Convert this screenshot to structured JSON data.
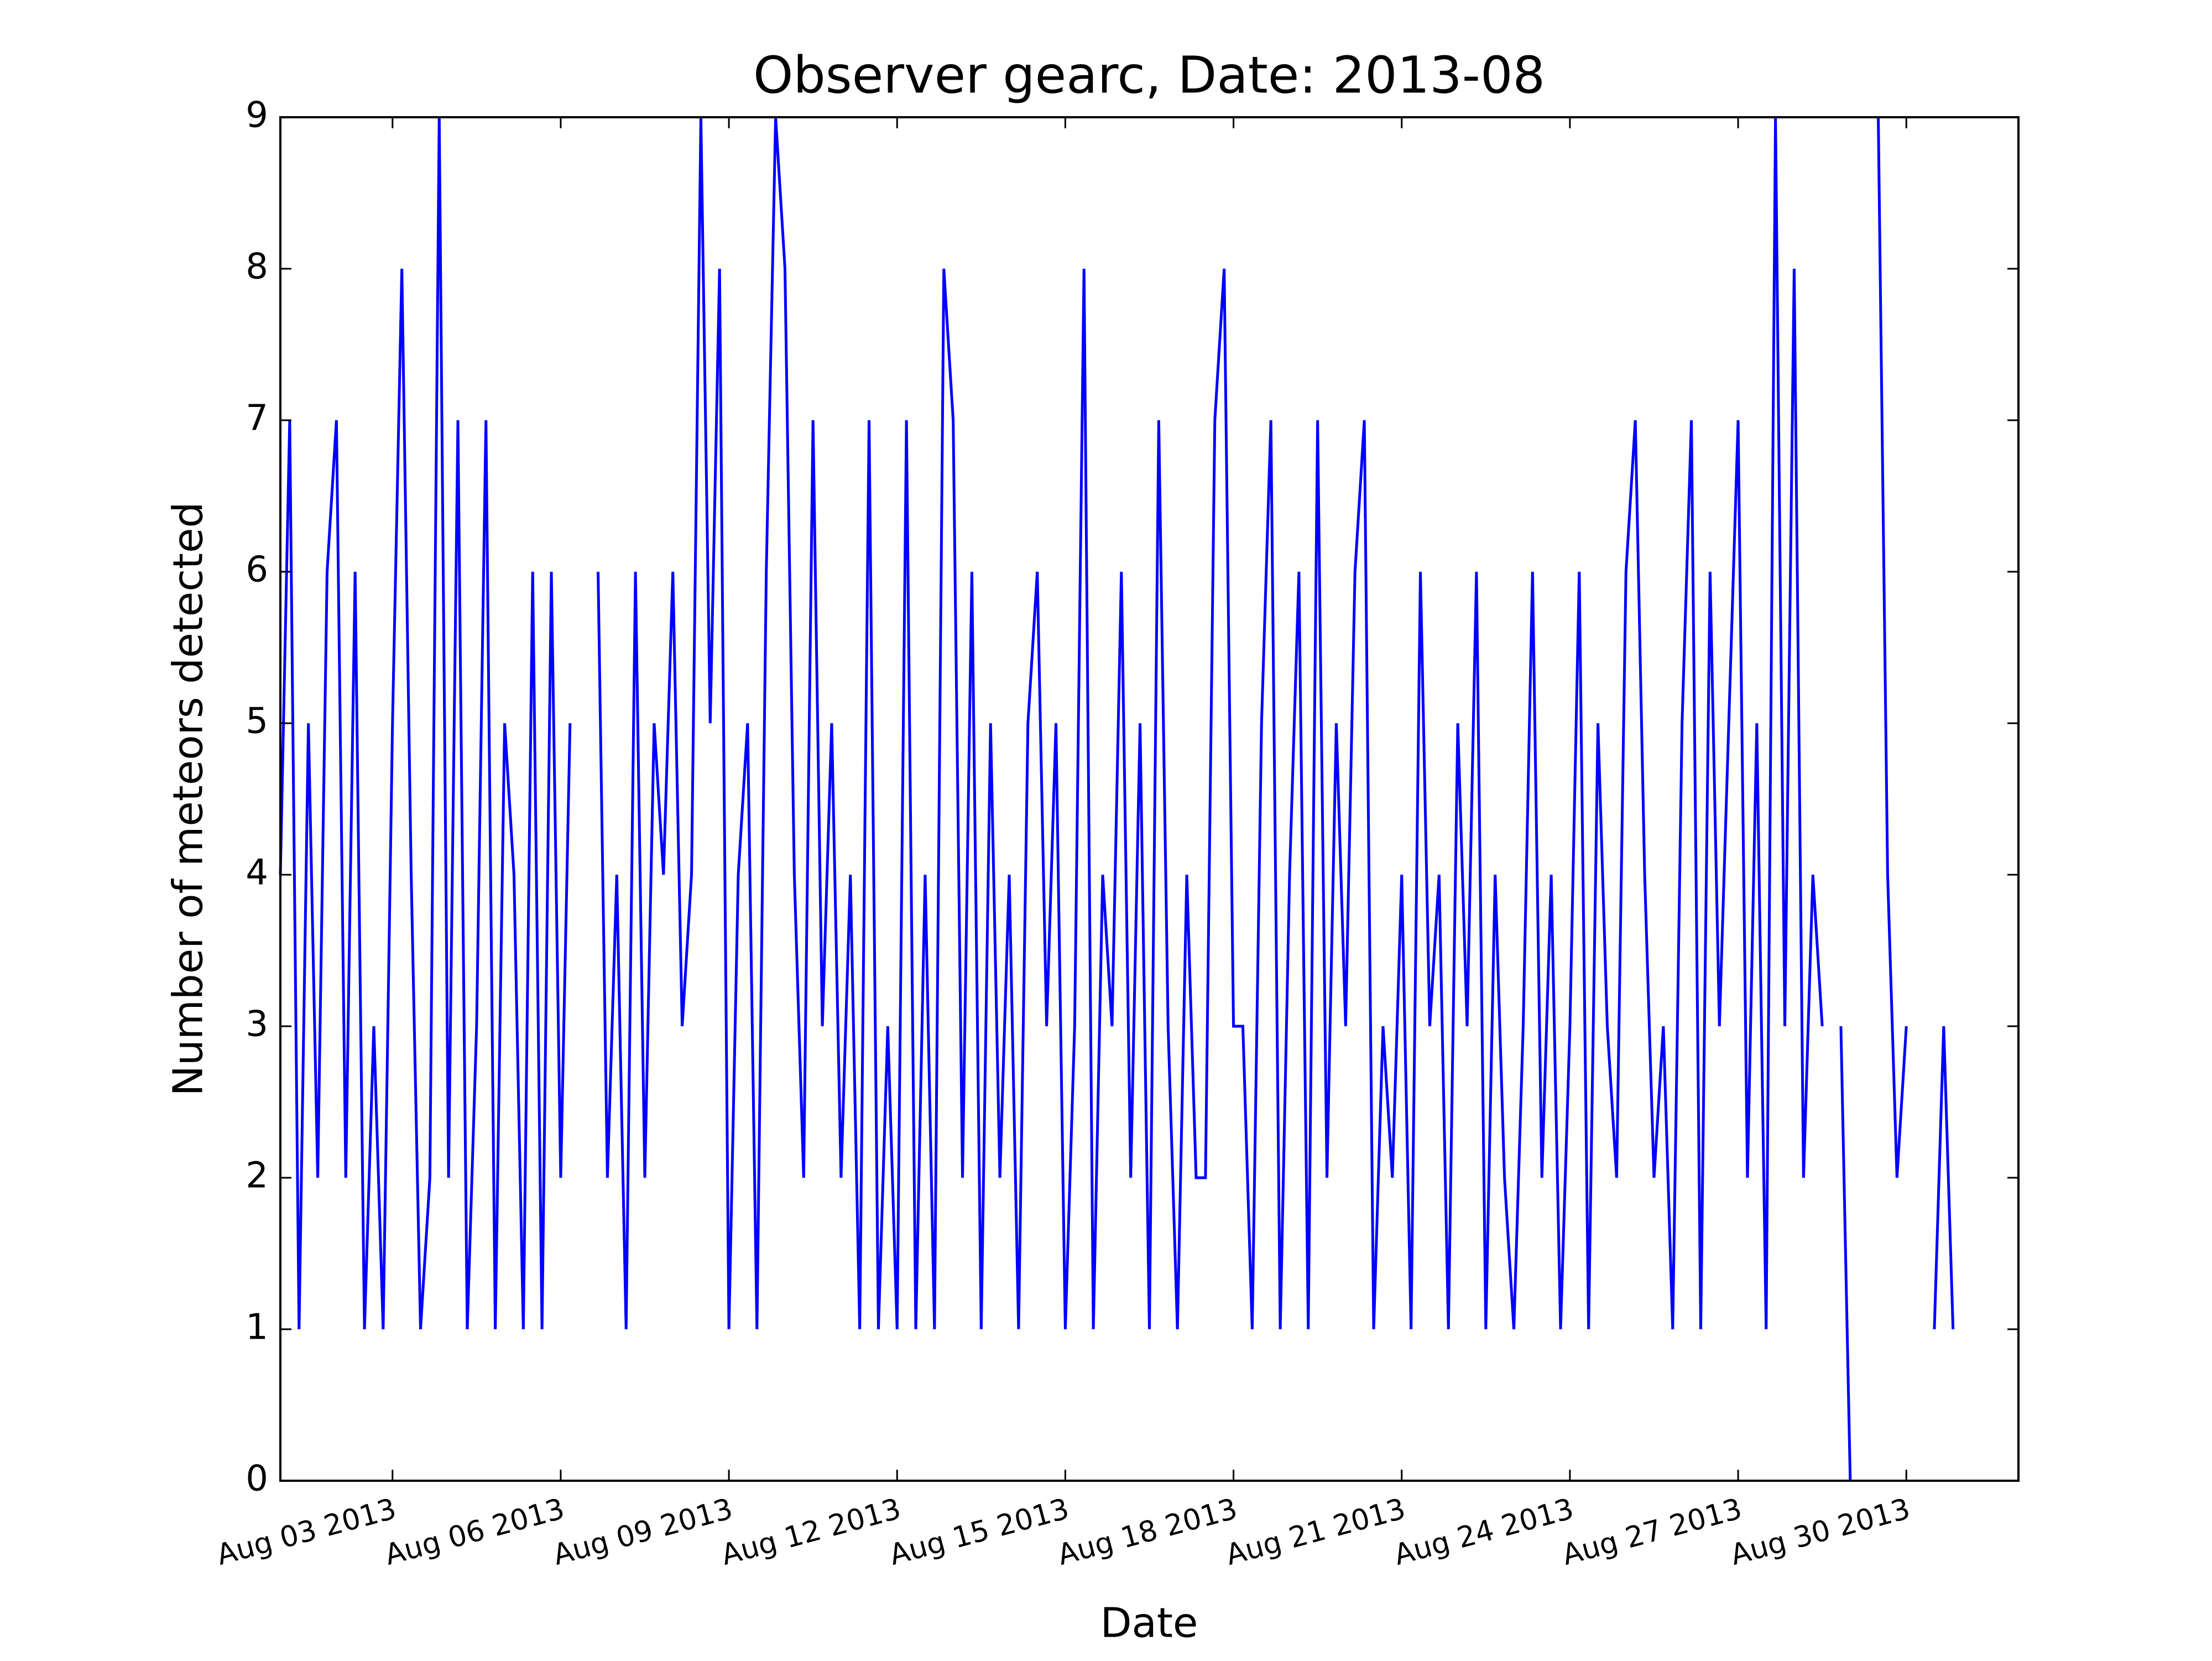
{
  "chart_data": {
    "type": "line",
    "title": "Observer gearc, Date: 2013-08",
    "x_label": "Date",
    "y_label": "Number of meteors detected",
    "xlim": [
      "2013-08-01",
      "2013-09-01"
    ],
    "ylim": [
      0,
      9
    ],
    "yticks": [
      0,
      1,
      2,
      3,
      4,
      5,
      6,
      7,
      8,
      9
    ],
    "xticks": [
      {
        "value": "2013-08-03",
        "label": "Aug 03 2013"
      },
      {
        "value": "2013-08-06",
        "label": "Aug 06 2013"
      },
      {
        "value": "2013-08-09",
        "label": "Aug 09 2013"
      },
      {
        "value": "2013-08-12",
        "label": "Aug 12 2013"
      },
      {
        "value": "2013-08-15",
        "label": "Aug 15 2013"
      },
      {
        "value": "2013-08-18",
        "label": "Aug 18 2013"
      },
      {
        "value": "2013-08-21",
        "label": "Aug 21 2013"
      },
      {
        "value": "2013-08-24",
        "label": "Aug 24 2013"
      },
      {
        "value": "2013-08-27",
        "label": "Aug 27 2013"
      },
      {
        "value": "2013-08-30",
        "label": "Aug 30 2013"
      }
    ],
    "x": [
      "2013-08-01 00:00",
      "2013-08-01 04:00",
      "2013-08-01 08:00",
      "2013-08-01 12:00",
      "2013-08-01 16:00",
      "2013-08-01 20:00",
      "2013-08-02 00:00",
      "2013-08-02 04:00",
      "2013-08-02 08:00",
      "2013-08-02 12:00",
      "2013-08-02 16:00",
      "2013-08-02 20:00",
      "2013-08-03 00:00",
      "2013-08-03 04:00",
      "2013-08-03 08:00",
      "2013-08-03 12:00",
      "2013-08-03 16:00",
      "2013-08-03 20:00",
      "2013-08-04 00:00",
      "2013-08-04 04:00",
      "2013-08-04 08:00",
      "2013-08-04 12:00",
      "2013-08-04 16:00",
      "2013-08-04 20:00",
      "2013-08-05 00:00",
      "2013-08-05 04:00",
      "2013-08-05 08:00",
      "2013-08-05 12:00",
      "2013-08-05 16:00",
      "2013-08-05 20:00",
      "2013-08-06 00:00",
      "2013-08-06 04:00",
      "2013-08-06 08:00",
      "2013-08-06 12:00",
      "2013-08-06 16:00",
      "2013-08-06 20:00",
      "2013-08-07 00:00",
      "2013-08-07 04:00",
      "2013-08-07 08:00",
      "2013-08-07 12:00",
      "2013-08-07 16:00",
      "2013-08-07 20:00",
      "2013-08-08 00:00",
      "2013-08-08 04:00",
      "2013-08-08 08:00",
      "2013-08-08 12:00",
      "2013-08-08 16:00",
      "2013-08-08 20:00",
      "2013-08-09 00:00",
      "2013-08-09 04:00",
      "2013-08-09 08:00",
      "2013-08-09 12:00",
      "2013-08-09 16:00",
      "2013-08-09 20:00",
      "2013-08-10 00:00",
      "2013-08-10 04:00",
      "2013-08-10 08:00",
      "2013-08-10 12:00",
      "2013-08-10 16:00",
      "2013-08-10 20:00",
      "2013-08-11 00:00",
      "2013-08-11 04:00",
      "2013-08-11 08:00",
      "2013-08-11 12:00",
      "2013-08-11 16:00",
      "2013-08-11 20:00",
      "2013-08-12 00:00",
      "2013-08-12 04:00",
      "2013-08-12 08:00",
      "2013-08-12 12:00",
      "2013-08-12 16:00",
      "2013-08-12 20:00",
      "2013-08-13 00:00",
      "2013-08-13 04:00",
      "2013-08-13 08:00",
      "2013-08-13 12:00",
      "2013-08-13 16:00",
      "2013-08-13 20:00",
      "2013-08-14 00:00",
      "2013-08-14 04:00",
      "2013-08-14 08:00",
      "2013-08-14 12:00",
      "2013-08-14 16:00",
      "2013-08-14 20:00",
      "2013-08-15 00:00",
      "2013-08-15 04:00",
      "2013-08-15 08:00",
      "2013-08-15 12:00",
      "2013-08-15 16:00",
      "2013-08-15 20:00",
      "2013-08-16 00:00",
      "2013-08-16 04:00",
      "2013-08-16 08:00",
      "2013-08-16 12:00",
      "2013-08-16 16:00",
      "2013-08-16 20:00",
      "2013-08-17 00:00",
      "2013-08-17 04:00",
      "2013-08-17 08:00",
      "2013-08-17 12:00",
      "2013-08-17 16:00",
      "2013-08-17 20:00",
      "2013-08-18 00:00",
      "2013-08-18 04:00",
      "2013-08-18 08:00",
      "2013-08-18 12:00",
      "2013-08-18 16:00",
      "2013-08-18 20:00",
      "2013-08-19 00:00",
      "2013-08-19 04:00",
      "2013-08-19 08:00",
      "2013-08-19 12:00",
      "2013-08-19 16:00",
      "2013-08-19 20:00",
      "2013-08-20 00:00",
      "2013-08-20 04:00",
      "2013-08-20 08:00",
      "2013-08-20 12:00",
      "2013-08-20 16:00",
      "2013-08-20 20:00",
      "2013-08-21 00:00",
      "2013-08-21 04:00",
      "2013-08-21 08:00",
      "2013-08-21 12:00",
      "2013-08-21 16:00",
      "2013-08-21 20:00",
      "2013-08-22 00:00",
      "2013-08-22 04:00",
      "2013-08-22 08:00",
      "2013-08-22 12:00",
      "2013-08-22 16:00",
      "2013-08-22 20:00",
      "2013-08-23 00:00",
      "2013-08-23 04:00",
      "2013-08-23 08:00",
      "2013-08-23 12:00",
      "2013-08-23 16:00",
      "2013-08-23 20:00",
      "2013-08-24 00:00",
      "2013-08-24 04:00",
      "2013-08-24 08:00",
      "2013-08-24 12:00",
      "2013-08-24 16:00",
      "2013-08-24 20:00",
      "2013-08-25 00:00",
      "2013-08-25 04:00",
      "2013-08-25 08:00",
      "2013-08-25 12:00",
      "2013-08-25 16:00",
      "2013-08-25 20:00",
      "2013-08-26 00:00",
      "2013-08-26 04:00",
      "2013-08-26 08:00",
      "2013-08-26 12:00",
      "2013-08-26 16:00",
      "2013-08-26 20:00",
      "2013-08-27 00:00",
      "2013-08-27 04:00",
      "2013-08-27 08:00",
      "2013-08-27 12:00",
      "2013-08-27 16:00",
      "2013-08-27 20:00",
      "2013-08-28 00:00",
      "2013-08-28 04:00",
      "2013-08-28 08:00",
      "2013-08-28 12:00",
      "2013-08-28 16:00",
      "2013-08-28 20:00",
      "2013-08-29 00:00",
      "2013-08-29 04:00",
      "2013-08-29 08:00",
      "2013-08-29 12:00",
      "2013-08-29 16:00",
      "2013-08-29 20:00",
      "2013-08-30 00:00",
      "2013-08-30 04:00",
      "2013-08-30 08:00",
      "2013-08-30 12:00",
      "2013-08-30 16:00",
      "2013-08-30 20:00"
    ],
    "series": [
      {
        "color": "#0000ff",
        "values": [
          4,
          7,
          1,
          5,
          2,
          6,
          7,
          2,
          6,
          1,
          3,
          1,
          5,
          8,
          4,
          1,
          2,
          9,
          2,
          7,
          1,
          3,
          7,
          1,
          5,
          4,
          1,
          6,
          1,
          6,
          2,
          5,
          null,
          null,
          6,
          2,
          4,
          1,
          6,
          2,
          5,
          4,
          6,
          3,
          4,
          9,
          5,
          8,
          1,
          4,
          5,
          1,
          6,
          9,
          8,
          4,
          2,
          7,
          3,
          5,
          2,
          4,
          1,
          7,
          1,
          3,
          1,
          7,
          1,
          4,
          1,
          8,
          7,
          2,
          6,
          1,
          5,
          2,
          4,
          1,
          5,
          6,
          3,
          5,
          1,
          3,
          8,
          1,
          4,
          3,
          6,
          2,
          5,
          1,
          7,
          3,
          1,
          4,
          2,
          2,
          7,
          8,
          3,
          3,
          1,
          5,
          7,
          1,
          4,
          6,
          1,
          7,
          2,
          5,
          3,
          6,
          7,
          1,
          3,
          2,
          4,
          1,
          6,
          3,
          4,
          1,
          5,
          3,
          6,
          1,
          4,
          2,
          1,
          3,
          6,
          2,
          4,
          1,
          3,
          6,
          1,
          5,
          3,
          2,
          6,
          7,
          4,
          2,
          3,
          1,
          5,
          7,
          1,
          6,
          3,
          5,
          7,
          2,
          5,
          1,
          9,
          3,
          8,
          2,
          4,
          3,
          null,
          3,
          0,
          null,
          null,
          9,
          4,
          2,
          3,
          null,
          null,
          1,
          3,
          1
        ]
      }
    ]
  }
}
